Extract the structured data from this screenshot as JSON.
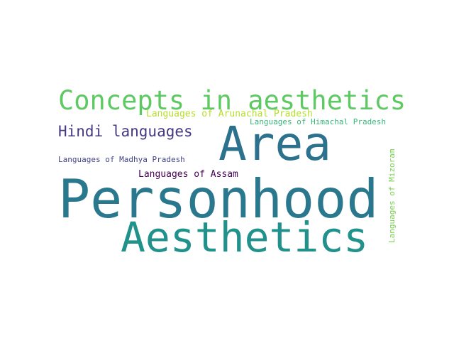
{
  "words": [
    {
      "text": "Concepts in aesthetics",
      "color": "#5ec962"
    },
    {
      "text": "Languages of Arunachal Pradesh",
      "color": "#b5de2b"
    },
    {
      "text": "Languages of Himachal Pradesh",
      "color": "#35b779"
    },
    {
      "text": "Hindi languages",
      "color": "#443983"
    },
    {
      "text": "Area",
      "color": "#2c728e"
    },
    {
      "text": "Languages of Madhya Pradesh",
      "color": "#414487"
    },
    {
      "text": "Languages of Assam",
      "color": "#440154"
    },
    {
      "text": "Personhood",
      "color": "#2a788e"
    },
    {
      "text": "Aesthetics",
      "color": "#21918c"
    },
    {
      "text": "Languages of Mizoram",
      "color": "#7ad151"
    }
  ]
}
